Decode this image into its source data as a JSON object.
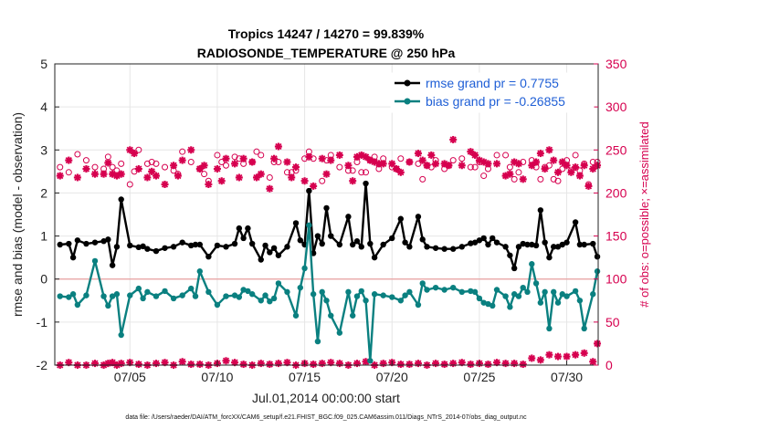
{
  "chart_data": {
    "type": "line",
    "title": "Tropics 14247 / 14270 = 99.839%",
    "subtitle": "RADIOSONDE_TEMPERATURE @ 250 hPa",
    "xlabel": "Jul.01,2014 00:00:00 start",
    "ylabel": "rmse and bias (model - observation)",
    "y2label": "# of obs: o=possible; ×=assimilated",
    "footnote": "data file: /Users/raeder/DAI/ATM_forcXX/CAM6_setup/f.e21.FHIST_BGC.f09_025.CAM6assim.011/Diags_NTrS_2014-07/obs_diag_output.nc",
    "xlim": [
      0.7,
      31.8
    ],
    "ylim": [
      -2,
      5
    ],
    "y2lim": [
      0,
      350
    ],
    "xticks": [
      5,
      10,
      15,
      20,
      25,
      30
    ],
    "xticklabels": [
      "07/05",
      "07/10",
      "07/15",
      "07/20",
      "07/25",
      "07/30"
    ],
    "yticks": [
      -2,
      -1,
      0,
      1,
      2,
      3,
      4,
      5
    ],
    "y2ticks": [
      0,
      50,
      100,
      150,
      200,
      250,
      300,
      350
    ],
    "grid": true,
    "legend": [
      {
        "name": "rmse grand pr = 0.7755",
        "color": "#000000"
      },
      {
        "name": "bias grand pr = -0.26855",
        "color": "#0a8080"
      }
    ],
    "series": [
      {
        "name": "rmse",
        "color": "#000000",
        "x": [
          1.0,
          1.5,
          1.75,
          2.0,
          2.5,
          3.0,
          3.5,
          3.75,
          4.0,
          4.25,
          4.5,
          5.0,
          5.5,
          5.75,
          6.0,
          6.5,
          7.0,
          7.5,
          8.0,
          8.5,
          8.75,
          9.0,
          9.5,
          10.0,
          10.5,
          11.0,
          11.25,
          11.5,
          11.75,
          12.0,
          12.5,
          12.75,
          13.0,
          13.25,
          13.5,
          14.0,
          14.5,
          14.75,
          15.0,
          15.25,
          15.5,
          15.75,
          16.0,
          16.25,
          16.5,
          17.0,
          17.5,
          17.75,
          18.0,
          18.25,
          18.5,
          18.75,
          19.0,
          19.5,
          20.0,
          20.5,
          20.75,
          21.0,
          21.5,
          21.75,
          22.0,
          22.5,
          23.0,
          23.5,
          24.0,
          24.5,
          24.75,
          25.0,
          25.25,
          25.5,
          25.75,
          26.0,
          26.5,
          26.75,
          27.0,
          27.25,
          27.5,
          27.75,
          28.0,
          28.25,
          28.5,
          28.75,
          29.0,
          29.25,
          29.5,
          29.75,
          30.0,
          30.5,
          30.75,
          31.0,
          31.5,
          31.75
        ],
        "y": [
          0.8,
          0.82,
          0.5,
          0.9,
          0.82,
          0.85,
          0.88,
          0.92,
          0.32,
          0.75,
          1.85,
          0.78,
          0.74,
          0.76,
          0.7,
          0.65,
          0.72,
          0.75,
          0.85,
          0.78,
          0.8,
          0.8,
          0.52,
          0.78,
          0.75,
          0.82,
          1.18,
          0.95,
          1.18,
          0.82,
          0.45,
          0.78,
          0.62,
          0.72,
          0.55,
          0.75,
          1.3,
          0.9,
          0.8,
          2.05,
          0.6,
          1.0,
          0.82,
          1.65,
          1.0,
          0.8,
          1.45,
          0.8,
          0.88,
          0.75,
          2.22,
          0.82,
          0.5,
          0.8,
          0.95,
          1.4,
          0.85,
          0.75,
          1.45,
          0.92,
          0.75,
          0.72,
          0.7,
          0.7,
          0.75,
          0.83,
          0.85,
          0.9,
          0.95,
          0.8,
          0.95,
          0.85,
          0.75,
          0.55,
          0.25,
          0.75,
          0.82,
          0.8,
          0.8,
          0.78,
          1.6,
          0.85,
          0.5,
          0.75,
          0.75,
          0.8,
          0.85,
          1.32,
          0.8,
          0.8,
          0.82,
          0.52
        ]
      },
      {
        "name": "bias",
        "color": "#0a8080",
        "x": [
          1.0,
          1.5,
          1.75,
          2.0,
          2.5,
          3.0,
          3.5,
          3.75,
          4.0,
          4.25,
          4.5,
          5.0,
          5.5,
          5.75,
          6.0,
          6.5,
          7.0,
          7.5,
          8.0,
          8.5,
          8.75,
          9.0,
          9.5,
          10.0,
          10.5,
          11.0,
          11.25,
          11.5,
          11.75,
          12.0,
          12.5,
          12.75,
          13.0,
          13.25,
          13.5,
          14.0,
          14.5,
          14.75,
          15.0,
          15.25,
          15.5,
          15.75,
          16.0,
          16.25,
          16.5,
          17.0,
          17.5,
          17.75,
          18.0,
          18.25,
          18.5,
          18.75,
          19.0,
          19.5,
          20.0,
          20.5,
          20.75,
          21.0,
          21.5,
          21.75,
          22.0,
          22.5,
          23.0,
          23.5,
          24.0,
          24.5,
          24.75,
          25.0,
          25.25,
          25.5,
          25.75,
          26.0,
          26.5,
          26.75,
          27.0,
          27.25,
          27.5,
          27.75,
          28.0,
          28.25,
          28.5,
          28.75,
          29.0,
          29.25,
          29.5,
          29.75,
          30.0,
          30.5,
          30.75,
          31.0,
          31.5,
          31.75
        ],
        "y": [
          -0.4,
          -0.42,
          -0.35,
          -0.6,
          -0.38,
          0.42,
          -0.4,
          -0.62,
          -0.4,
          -0.35,
          -1.3,
          -0.38,
          -0.22,
          -0.45,
          -0.3,
          -0.4,
          -0.28,
          -0.45,
          -0.38,
          -0.22,
          -0.4,
          0.18,
          -0.3,
          -0.6,
          -0.4,
          -0.38,
          -0.42,
          -0.25,
          -0.28,
          -0.35,
          -0.5,
          -0.38,
          -0.52,
          -0.45,
          -0.1,
          -0.3,
          -0.85,
          -0.2,
          0.25,
          1.25,
          -0.35,
          -1.45,
          -0.3,
          -0.5,
          -0.85,
          -1.25,
          -0.3,
          -0.85,
          -0.4,
          -0.28,
          -0.5,
          -1.9,
          -0.35,
          -0.38,
          -0.42,
          -0.5,
          -0.38,
          -0.3,
          -0.6,
          -0.1,
          -0.25,
          -0.2,
          -0.25,
          -0.2,
          -0.3,
          -0.28,
          -0.3,
          -0.45,
          -0.55,
          -0.58,
          -0.62,
          -0.25,
          -0.4,
          -0.65,
          -0.35,
          -0.4,
          -0.2,
          -0.3,
          0.35,
          -0.1,
          -0.55,
          -0.3,
          -1.15,
          -0.3,
          -0.55,
          -0.35,
          -0.4,
          -0.28,
          -0.5,
          -1.15,
          -0.35,
          0.18
        ]
      }
    ],
    "obs_counts": {
      "name": "# of obs",
      "color": "#d6004f",
      "x": [
        1.0,
        1.5,
        2.0,
        2.5,
        3.0,
        3.5,
        3.75,
        4.0,
        4.25,
        4.5,
        5.0,
        5.25,
        5.5,
        6.0,
        6.25,
        6.5,
        7.0,
        7.5,
        7.75,
        8.0,
        8.5,
        9.0,
        9.25,
        9.5,
        10.0,
        10.25,
        10.5,
        11.0,
        11.25,
        11.5,
        12.0,
        12.25,
        12.5,
        13.0,
        13.25,
        13.5,
        14.0,
        14.25,
        14.5,
        15.0,
        15.25,
        15.5,
        16.0,
        16.25,
        16.5,
        17.0,
        17.5,
        17.75,
        18.0,
        18.25,
        18.5,
        18.75,
        19.0,
        19.25,
        19.5,
        20.0,
        20.25,
        20.5,
        21.0,
        21.5,
        21.75,
        22.0,
        22.25,
        22.5,
        23.0,
        23.25,
        23.5,
        24.0,
        24.5,
        24.75,
        25.0,
        25.25,
        25.5,
        26.0,
        26.5,
        26.75,
        27.0,
        27.25,
        27.5,
        28.0,
        28.25,
        28.5,
        28.75,
        29.0,
        29.25,
        29.5,
        29.75,
        30.0,
        30.25,
        30.5,
        30.75,
        31.0,
        31.25,
        31.5,
        31.75
      ],
      "assimilated": [
        220,
        238,
        218,
        228,
        222,
        222,
        235,
        222,
        220,
        222,
        250,
        246,
        228,
        218,
        225,
        220,
        210,
        232,
        220,
        238,
        250,
        228,
        232,
        210,
        228,
        214,
        240,
        234,
        218,
        240,
        236,
        218,
        222,
        205,
        240,
        254,
        236,
        218,
        230,
        214,
        242,
        208,
        240,
        222,
        238,
        244,
        232,
        214,
        242,
        244,
        242,
        238,
        236,
        234,
        234,
        234,
        228,
        224,
        236,
        246,
        238,
        232,
        244,
        234,
        234,
        232,
        262,
        232,
        248,
        244,
        238,
        236,
        234,
        234,
        220,
        222,
        236,
        234,
        216,
        232,
        236,
        246,
        228,
        250,
        238,
        224,
        236,
        232,
        224,
        230,
        220,
        232,
        208,
        228,
        232
      ],
      "possible": [
        230,
        224,
        245,
        238,
        230,
        228,
        242,
        230,
        226,
        234,
        210,
        225,
        250,
        234,
        236,
        234,
        230,
        226,
        222,
        248,
        236,
        228,
        222,
        214,
        244,
        236,
        232,
        242,
        240,
        234,
        236,
        248,
        244,
        218,
        236,
        236,
        224,
        224,
        226,
        240,
        248,
        240,
        214,
        238,
        244,
        230,
        226,
        226,
        236,
        224,
        224,
        238,
        242,
        228,
        240,
        230,
        228,
        240,
        236,
        234,
        216,
        232,
        230,
        238,
        228,
        232,
        238,
        240,
        230,
        230,
        236,
        220,
        228,
        244,
        244,
        230,
        216,
        224,
        236,
        238,
        230,
        216,
        230,
        232,
        216,
        214,
        228,
        238,
        226,
        244,
        226,
        234,
        210,
        236,
        236
      ],
      "low_x": [
        1.0,
        1.5,
        2.0,
        2.5,
        3.0,
        3.5,
        3.75,
        4.0,
        4.25,
        4.5,
        5.0,
        5.5,
        6.0,
        6.5,
        7.0,
        7.5,
        8.0,
        8.5,
        9.0,
        9.5,
        10.0,
        10.5,
        11.0,
        11.5,
        12.0,
        12.5,
        13.0,
        13.5,
        14.0,
        14.5,
        15.0,
        15.5,
        16.0,
        16.5,
        17.0,
        17.5,
        18.0,
        18.5,
        19.0,
        19.5,
        20.0,
        20.5,
        21.0,
        21.5,
        22.0,
        22.5,
        23.0,
        23.5,
        24.0,
        24.5,
        25.0,
        25.5,
        26.0,
        26.5,
        27.0,
        27.5,
        28.0,
        28.5,
        29.0,
        29.5,
        30.0,
        30.5,
        31.0,
        31.5,
        31.75
      ],
      "low_y": [
        0,
        3,
        0,
        0,
        2,
        0,
        2,
        3,
        0,
        2,
        3,
        1,
        0,
        2,
        3,
        0,
        4,
        1,
        1,
        0,
        2,
        5,
        3,
        1,
        0,
        2,
        1,
        2,
        3,
        0,
        2,
        1,
        2,
        3,
        2,
        0,
        2,
        4,
        0,
        2,
        3,
        1,
        1,
        2,
        0,
        2,
        1,
        2,
        3,
        1,
        2,
        1,
        3,
        2,
        2,
        1,
        8,
        6,
        12,
        10,
        10,
        12,
        14,
        4,
        25
      ]
    }
  }
}
